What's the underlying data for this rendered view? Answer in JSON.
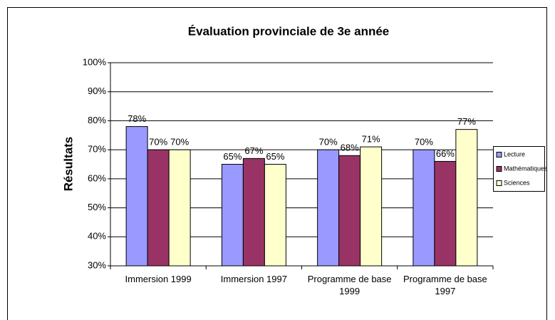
{
  "chart_data": {
    "type": "bar",
    "title": "Évaluation provinciale de 3e année",
    "y_label": "Résultats",
    "categories": [
      "Immersion 1999",
      "Immersion 1997",
      "Programme de base 1999",
      "Programme de base 1997"
    ],
    "series": [
      {
        "name": "Lecture",
        "color": "#9999ff",
        "values": [
          78,
          65,
          70,
          70
        ],
        "value_labels": [
          "78%",
          "65%",
          "70%",
          "70%"
        ]
      },
      {
        "name": "Mathématiques",
        "color": "#993366",
        "values": [
          70,
          67,
          68,
          66
        ],
        "value_labels": [
          "70%",
          "67%",
          "68%",
          "66%"
        ]
      },
      {
        "name": "Sciences",
        "color": "#ffffcc",
        "values": [
          70,
          65,
          71,
          77
        ],
        "value_labels": [
          "70%",
          "65%",
          "71%",
          "77%"
        ]
      }
    ],
    "ylim": [
      30,
      100
    ],
    "yticks": [
      {
        "value": 30,
        "label": "30%"
      },
      {
        "value": 40,
        "label": "40%"
      },
      {
        "value": 50,
        "label": "50%"
      },
      {
        "value": 60,
        "label": "60%"
      },
      {
        "value": 70,
        "label": "70%"
      },
      {
        "value": 80,
        "label": "80%"
      },
      {
        "value": 90,
        "label": "90%"
      },
      {
        "value": 100,
        "label": "100%"
      }
    ],
    "grid": true,
    "legend": "right"
  }
}
